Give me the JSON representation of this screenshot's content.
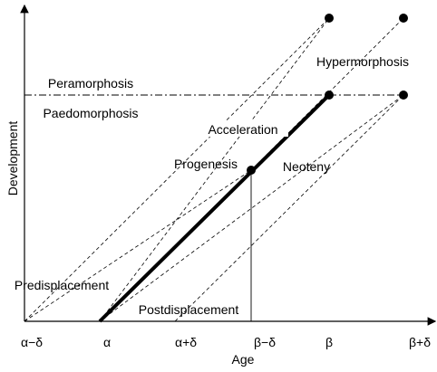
{
  "axes": {
    "x_label": "Age",
    "y_label": "Development",
    "x_ticks": [
      "α−δ",
      "α",
      "α+δ",
      "β−δ",
      "β",
      "β+δ"
    ]
  },
  "labels": {
    "peramorphosis": "Peramorphosis",
    "paedomorphosis": "Paedomorphosis",
    "hypermorphosis": "Hypermorphosis",
    "acceleration": "Acceleration",
    "progenesis": "Progenesis",
    "neoteny": "Neoteny",
    "predisplacement": "Predisplacement",
    "postdisplacement": "Postdisplacement"
  }
}
